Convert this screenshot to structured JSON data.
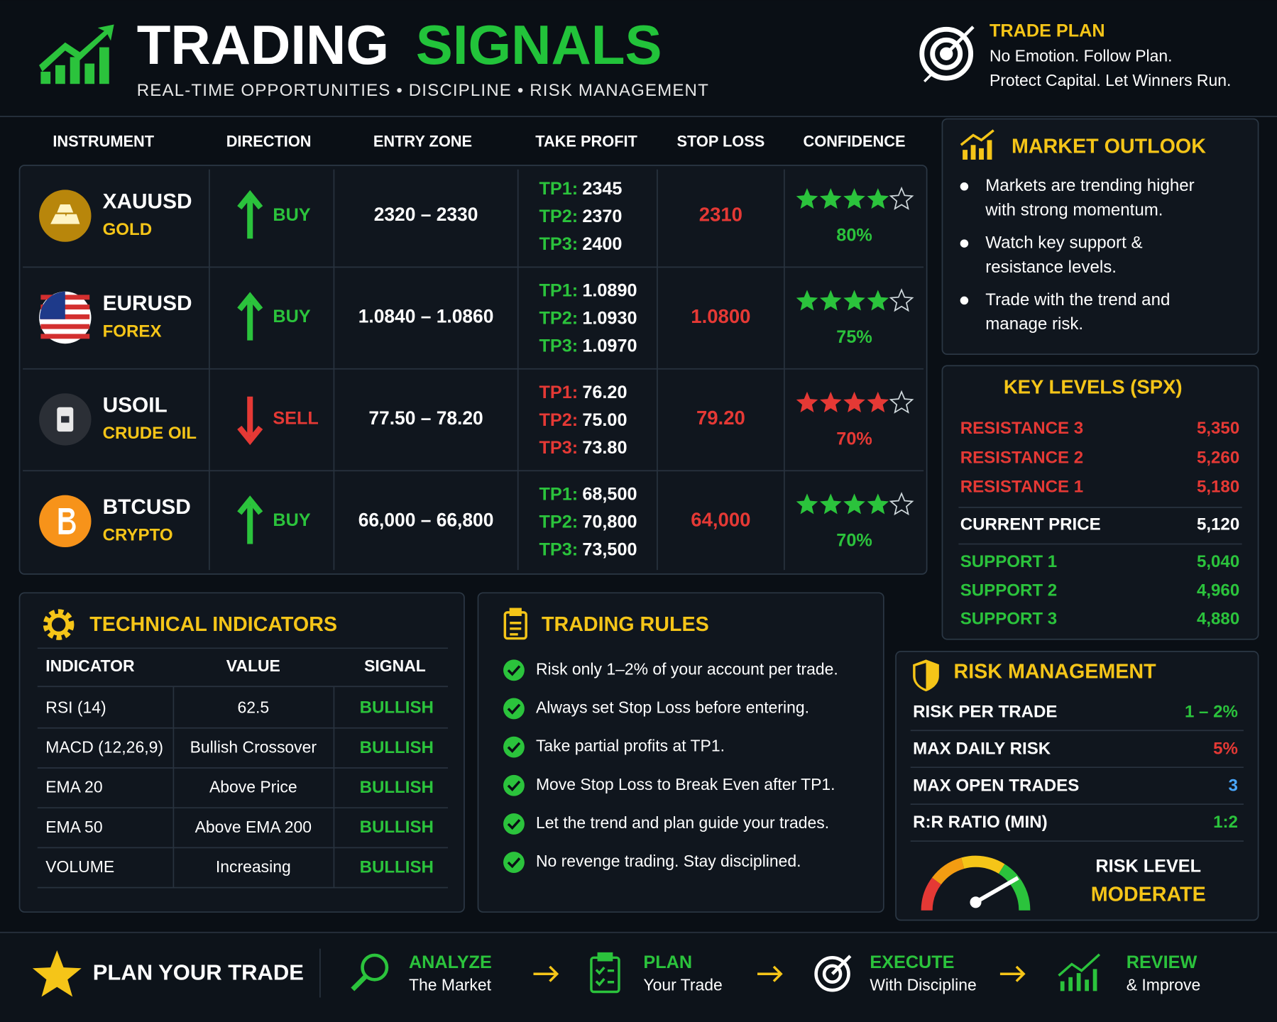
{
  "header": {
    "title_part1": "TRADING",
    "title_part2": "SIGNALS",
    "subtitle": "REAL-TIME OPPORTUNITIES • DISCIPLINE • RISK MANAGEMENT"
  },
  "trade_plan": {
    "title": "TRADE PLAN",
    "lines": [
      "No Emotion.  Follow Plan.",
      "Protect Capital.  Let Winners Run."
    ]
  },
  "signals": {
    "columns": [
      "INSTRUMENT",
      "DIRECTION",
      "ENTRY ZONE",
      "TAKE PROFIT",
      "STOP LOSS",
      "CONFIDENCE"
    ],
    "rows": [
      {
        "symbol": "XAUUSD",
        "market": "GOLD",
        "direction": "BUY",
        "color": "#2bc33c",
        "entry_zone": "2320 – 2330",
        "take_profit": [
          {
            "label": "TP1:",
            "value": "2345"
          },
          {
            "label": "TP2:",
            "value": "2370"
          },
          {
            "label": "TP3:",
            "value": "2400"
          }
        ],
        "stop_loss": "2310",
        "stars": 4,
        "stars_of": 5,
        "confidence": "80%"
      },
      {
        "symbol": "EURUSD",
        "market": "FOREX",
        "direction": "BUY",
        "color": "#2bc33c",
        "entry_zone": "1.0840 – 1.0860",
        "take_profit": [
          {
            "label": "TP1:",
            "value": "1.0890"
          },
          {
            "label": "TP2:",
            "value": "1.0930"
          },
          {
            "label": "TP3:",
            "value": "1.0970"
          }
        ],
        "stop_loss": "1.0800",
        "stars": 4,
        "stars_of": 5,
        "confidence": "75%"
      },
      {
        "symbol": "USOIL",
        "market": "CRUDE OIL",
        "direction": "SELL",
        "color": "#e53935",
        "entry_zone": "77.50 – 78.20",
        "take_profit": [
          {
            "label": "TP1:",
            "value": "76.20"
          },
          {
            "label": "TP2:",
            "value": "75.00"
          },
          {
            "label": "TP3:",
            "value": "73.80"
          }
        ],
        "stop_loss": "79.20",
        "stars": 4,
        "stars_of": 5,
        "confidence": "70%"
      },
      {
        "symbol": "BTCUSD",
        "market": "CRYPTO",
        "direction": "BUY",
        "color": "#2bc33c",
        "entry_zone": "66,000 – 66,800",
        "take_profit": [
          {
            "label": "TP1:",
            "value": "68,500"
          },
          {
            "label": "TP2:",
            "value": "70,800"
          },
          {
            "label": "TP3:",
            "value": "73,500"
          }
        ],
        "stop_loss": "64,000",
        "stars": 4,
        "stars_of": 5,
        "confidence": "70%"
      }
    ]
  },
  "market_outlook": {
    "title": "MARKET OUTLOOK",
    "bullets": [
      [
        "Markets are trending higher",
        "with strong momentum."
      ],
      [
        "Watch key support &",
        "resistance levels."
      ],
      [
        "Trade with the trend and",
        "manage risk."
      ]
    ]
  },
  "key_levels": {
    "title": "KEY LEVELS (SPX)",
    "resistance": [
      {
        "label": "RESISTANCE 3",
        "value": "5,350"
      },
      {
        "label": "RESISTANCE 2",
        "value": "5,260"
      },
      {
        "label": "RESISTANCE 1",
        "value": "5,180"
      }
    ],
    "current": {
      "label": "CURRENT PRICE",
      "value": "5,120"
    },
    "support": [
      {
        "label": "SUPPORT 1",
        "value": "5,040"
      },
      {
        "label": "SUPPORT 2",
        "value": "4,960"
      },
      {
        "label": "SUPPORT 3",
        "value": "4,880"
      }
    ]
  },
  "technical_indicators": {
    "title": "TECHNICAL INDICATORS",
    "columns": [
      "INDICATOR",
      "VALUE",
      "SIGNAL"
    ],
    "rows": [
      [
        "RSI (14)",
        "62.5",
        "BULLISH"
      ],
      [
        "MACD (12,26,9)",
        "Bullish Crossover",
        "BULLISH"
      ],
      [
        "EMA 20",
        "Above Price",
        "BULLISH"
      ],
      [
        "EMA 50",
        "Above EMA 200",
        "BULLISH"
      ],
      [
        "VOLUME",
        "Increasing",
        "BULLISH"
      ]
    ]
  },
  "trading_rules": {
    "title": "TRADING RULES",
    "rules": [
      "Risk only 1–2% of your account per trade.",
      "Always set Stop Loss before entering.",
      "Take partial profits at TP1.",
      "Move Stop Loss to Break Even after TP1.",
      "Let the trend and plan guide your trades.",
      "No revenge trading. Stay disciplined."
    ]
  },
  "risk_management": {
    "title": "RISK MANAGEMENT",
    "rows": [
      {
        "label": "RISK PER TRADE",
        "value": "1 – 2%",
        "color": "#2bc33c"
      },
      {
        "label": "MAX DAILY RISK",
        "value": "5%",
        "color": "#e53935"
      },
      {
        "label": "MAX OPEN TRADES",
        "value": "3",
        "color": "#4aa8ff"
      },
      {
        "label": "R:R RATIO (MIN)",
        "value": "1:2",
        "color": "#2bc33c"
      }
    ],
    "risk_level": {
      "label": "RISK LEVEL",
      "value": "MODERATE"
    }
  },
  "footer": {
    "title": "PLAN YOUR TRADE",
    "steps": [
      {
        "title": "ANALYZE",
        "subtitle": "The Market"
      },
      {
        "title": "PLAN",
        "subtitle": "Your Trade"
      },
      {
        "title": "EXECUTE",
        "subtitle": "With Discipline"
      },
      {
        "title": "REVIEW",
        "subtitle": "& Improve"
      }
    ]
  }
}
